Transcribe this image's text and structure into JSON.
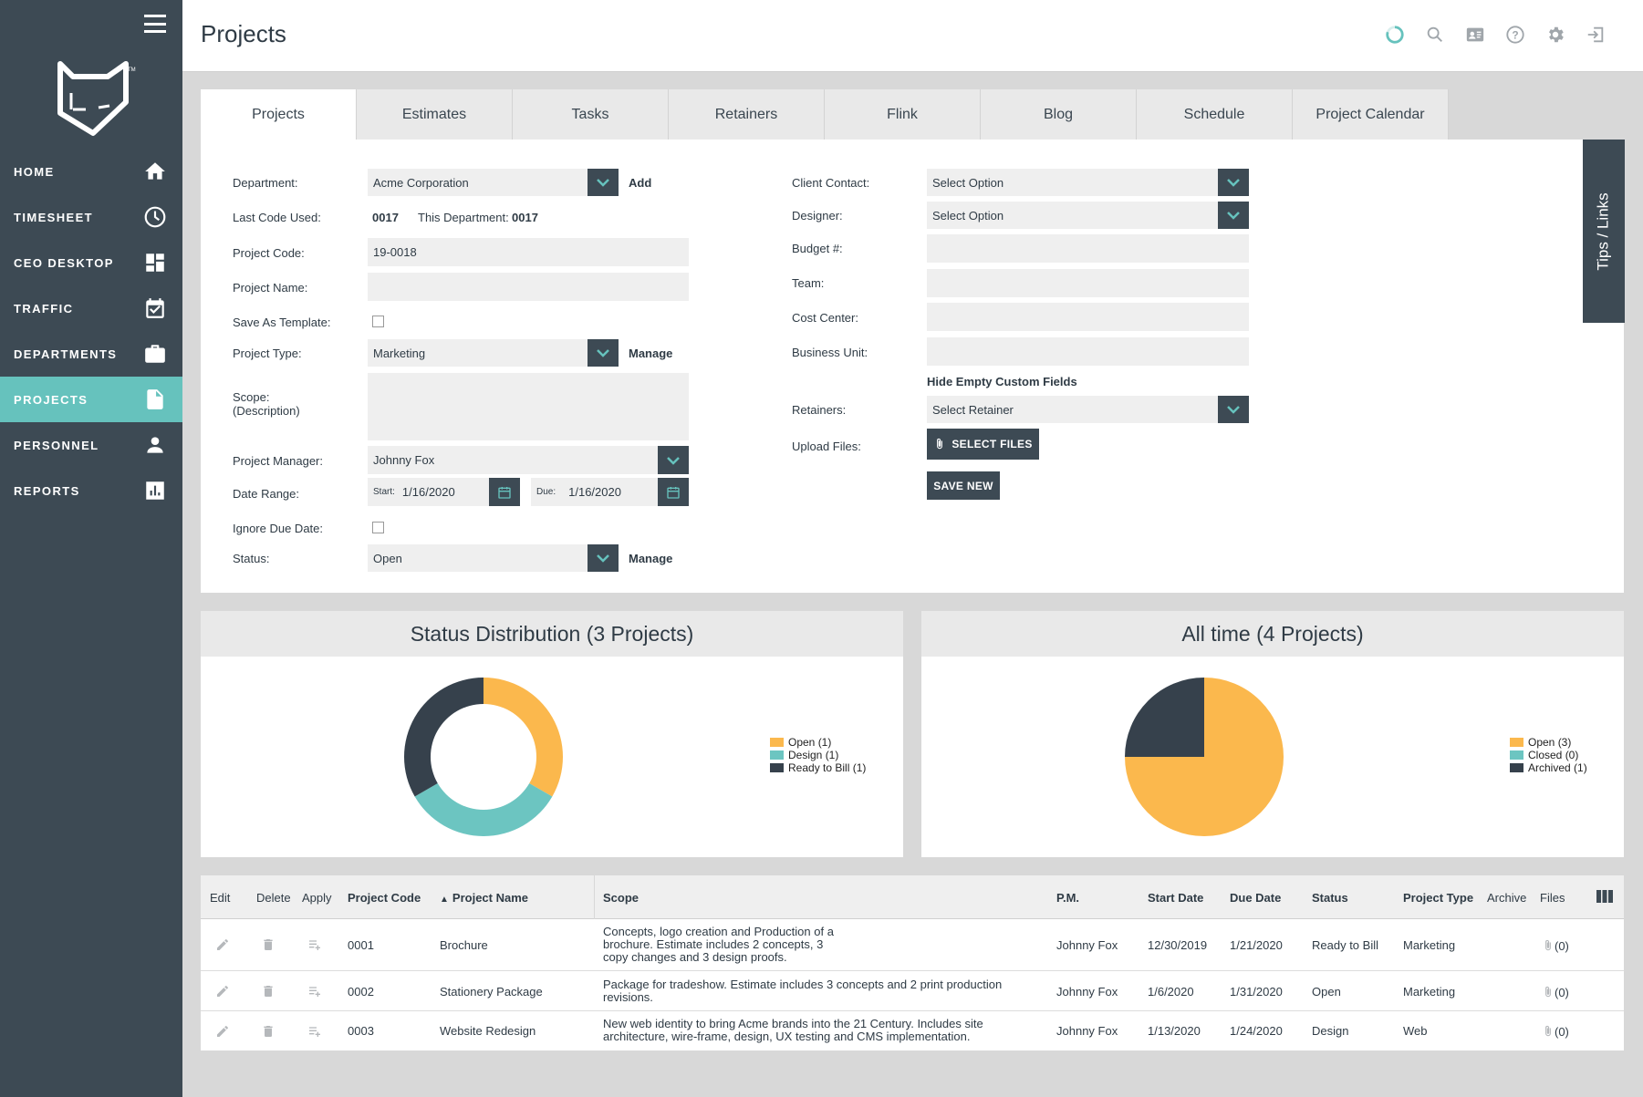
{
  "app": {
    "page_title": "Projects"
  },
  "sidebar": {
    "items": [
      {
        "label": "HOME",
        "icon": "home-icon"
      },
      {
        "label": "TIMESHEET",
        "icon": "clock-icon"
      },
      {
        "label": "CEO DESKTOP",
        "icon": "dashboard-icon"
      },
      {
        "label": "TRAFFIC",
        "icon": "calendar-check-icon"
      },
      {
        "label": "DEPARTMENTS",
        "icon": "briefcase-icon"
      },
      {
        "label": "PROJECTS",
        "icon": "document-icon"
      },
      {
        "label": "PERSONNEL",
        "icon": "person-icon"
      },
      {
        "label": "REPORTS",
        "icon": "bar-chart-icon"
      }
    ],
    "active": "PROJECTS"
  },
  "tabs": [
    "Projects",
    "Estimates",
    "Tasks",
    "Retainers",
    "Flink",
    "Blog",
    "Schedule",
    "Project Calendar"
  ],
  "tips_label": "Tips / Links",
  "form": {
    "department_label": "Department:",
    "department_value": "Acme Corporation",
    "add_label": "Add",
    "last_code_label": "Last Code Used:",
    "last_code_value": "0017",
    "this_dept_label": "This Department:",
    "this_dept_value": "0017",
    "project_code_label": "Project Code:",
    "project_code_value": "19-0018",
    "project_name_label": "Project Name:",
    "save_template_label": "Save As Template:",
    "project_type_label": "Project Type:",
    "project_type_value": "Marketing",
    "manage_label": "Manage",
    "scope_label": "Scope:",
    "scope_sub_label": "(Description)",
    "pm_label": "Project Manager:",
    "pm_value": "Johnny Fox",
    "date_range_label": "Date Range:",
    "start_label": "Start:",
    "start_value": "1/16/2020",
    "due_label": "Due:",
    "due_value": "1/16/2020",
    "ignore_due_label": "Ignore Due Date:",
    "status_label": "Status:",
    "status_value": "Open",
    "client_contact_label": "Client Contact:",
    "client_contact_value": "Select Option",
    "designer_label": "Designer:",
    "designer_value": "Select Option",
    "budget_label": "Budget #:",
    "team_label": "Team:",
    "cost_center_label": "Cost Center:",
    "business_unit_label": "Business Unit:",
    "hide_empty_label": "Hide Empty Custom Fields",
    "retainers_label": "Retainers:",
    "retainers_value": "Select Retainer",
    "upload_label": "Upload Files:",
    "select_files_label": "SELECT FILES",
    "save_new_label": "SAVE NEW"
  },
  "colors": {
    "accent": "#66c2bd",
    "dark": "#3d4a54",
    "orange": "#fbb84d",
    "teal": "#6cc5c1",
    "navy": "#36414c"
  },
  "chart_data": [
    {
      "type": "pie",
      "title": "Status Distribution (3 Projects)",
      "donut": true,
      "categories": [
        "Open (1)",
        "Design (1)",
        "Ready to Bill (1)"
      ],
      "values": [
        1,
        1,
        1
      ],
      "colors": [
        "#fbb84d",
        "#6cc5c1",
        "#36414c"
      ],
      "legend": "right"
    },
    {
      "type": "pie",
      "title": "All time (4 Projects)",
      "donut": false,
      "categories": [
        "Open (3)",
        "Closed (0)",
        "Archived (1)"
      ],
      "values": [
        3,
        0,
        1
      ],
      "colors": [
        "#fbb84d",
        "#6cc5c1",
        "#36414c"
      ],
      "legend": "right"
    }
  ],
  "table": {
    "headers": {
      "edit": "Edit",
      "delete": "Delete",
      "apply": "Apply",
      "code": "Project Code",
      "name": "Project Name",
      "scope": "Scope",
      "pm": "P.M.",
      "start": "Start Date",
      "due": "Due Date",
      "status": "Status",
      "type": "Project Type",
      "archive": "Archive",
      "files": "Files"
    },
    "rows": [
      {
        "code": "0001",
        "name": "Brochure",
        "scope": [
          "Concepts, logo creation and Production of a",
          "brochure. Estimate includes 2 concepts, 3",
          "copy changes and 3 design proofs."
        ],
        "pm": "Johnny Fox",
        "start": "12/30/2019",
        "due": "1/21/2020",
        "status": "Ready to Bill",
        "type": "Marketing",
        "files": "(0)"
      },
      {
        "code": "0002",
        "name": "Stationery Package",
        "scope": [
          "Package for tradeshow. Estimate includes 3 concepts and 2 print production",
          "revisions."
        ],
        "pm": "Johnny Fox",
        "start": "1/6/2020",
        "due": "1/31/2020",
        "status": "Open",
        "type": "Marketing",
        "files": "(0)"
      },
      {
        "code": "0003",
        "name": "Website Redesign",
        "scope": [
          "New web identity to bring Acme brands into the 21 Century. Includes site",
          "architecture, wire-frame, design, UX testing and CMS implementation."
        ],
        "pm": "Johnny Fox",
        "start": "1/13/2020",
        "due": "1/24/2020",
        "status": "Design",
        "type": "Web",
        "files": "(0)"
      }
    ]
  }
}
